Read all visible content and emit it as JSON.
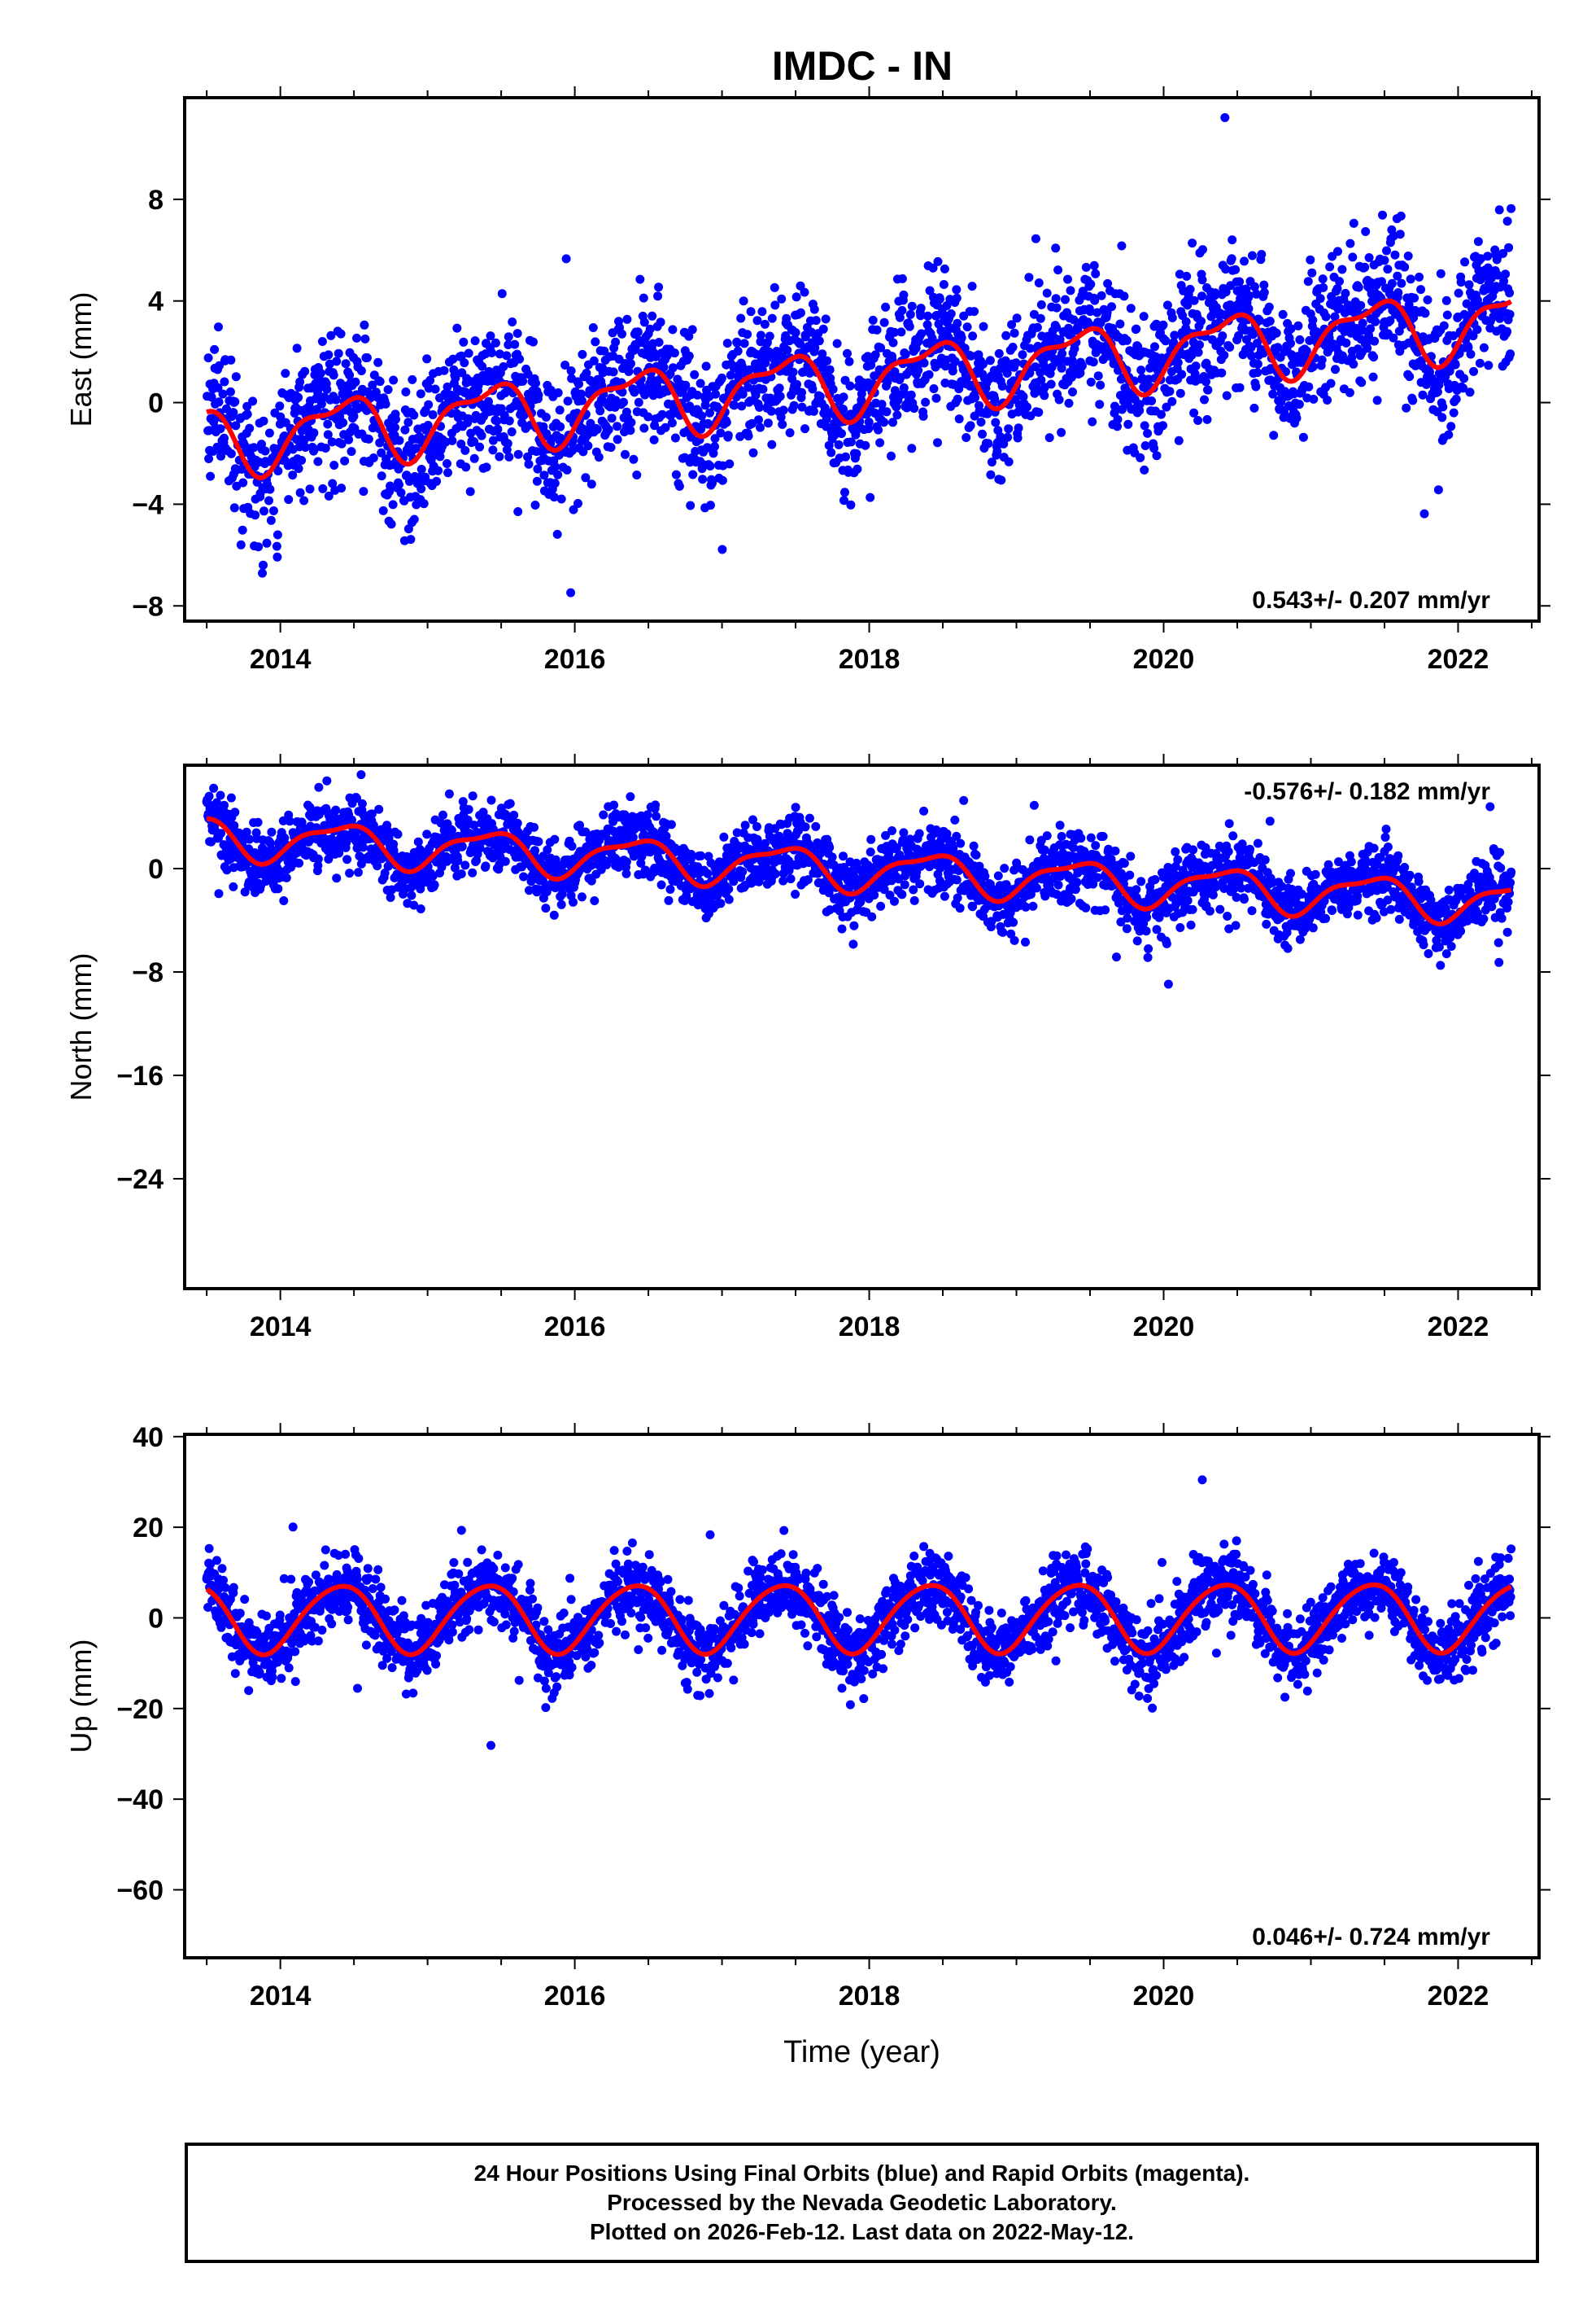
{
  "title": "IMDC - IN",
  "chart_data": [
    {
      "type": "scatter",
      "component": "East",
      "ylabel": "East (mm)",
      "xlim": [
        2013.35,
        2022.55
      ],
      "ylim": [
        -8.6,
        12.0
      ],
      "yticks": [
        -8,
        -4,
        0,
        4,
        8
      ],
      "ytick_labels": [
        "−8",
        "−4",
        "0",
        "4",
        "8"
      ],
      "xticks": [
        2014,
        2016,
        2018,
        2020,
        2022
      ],
      "xtick_labels": [
        "2014",
        "2016",
        "2018",
        "2020",
        "2022"
      ],
      "rate_label": "0.543+/- 0.207 mm/yr",
      "rate_position": "bottom-right",
      "model": {
        "t0": 2013.5,
        "offset": -1.5,
        "slope": 0.543,
        "annual_amp": 1.2,
        "semiannual_amp": 0.5
      },
      "scatter_sd": 1.4,
      "series": [
        {
          "name": "Final Orbits",
          "color": "#0000ff"
        },
        {
          "name": "Model fit",
          "color": "#ff0000"
        }
      ],
      "start": 2013.5,
      "end": 2022.36
    },
    {
      "type": "scatter",
      "component": "North",
      "ylabel": "North (mm)",
      "xlim": [
        2013.35,
        2022.55
      ],
      "ylim": [
        -32.5,
        8.0
      ],
      "yticks": [
        -24,
        -16,
        -8,
        0
      ],
      "ytick_labels": [
        "−24",
        "−16",
        "−8",
        "0"
      ],
      "xticks": [
        2014,
        2016,
        2018,
        2020,
        2022
      ],
      "xtick_labels": [
        "2014",
        "2016",
        "2018",
        "2020",
        "2022"
      ],
      "rate_label": "-0.576+/- 0.182 mm/yr",
      "rate_position": "top-right",
      "model": {
        "t0": 2013.5,
        "offset": 2.5,
        "slope": -0.576,
        "annual_amp": 1.5,
        "semiannual_amp": 0.5
      },
      "scatter_sd": 1.3,
      "series": [
        {
          "name": "Final Orbits",
          "color": "#0000ff"
        },
        {
          "name": "Model fit",
          "color": "#ff0000"
        }
      ],
      "start": 2013.5,
      "end": 2022.36
    },
    {
      "type": "scatter",
      "component": "Up",
      "ylabel": "Up (mm)",
      "xlabel": "Time (year)",
      "xlim": [
        2013.35,
        2022.55
      ],
      "ylim": [
        -75.0,
        40.5
      ],
      "yticks": [
        -60,
        -40,
        -20,
        0,
        20,
        40
      ],
      "ytick_labels": [
        "−60",
        "−40",
        "−20",
        "0",
        "20",
        "40"
      ],
      "xticks": [
        2014,
        2016,
        2018,
        2020,
        2022
      ],
      "xtick_labels": [
        "2014",
        "2016",
        "2018",
        "2020",
        "2022"
      ],
      "rate_label": "0.046+/- 0.724 mm/yr",
      "rate_position": "bottom-right",
      "model": {
        "t0": 2013.5,
        "offset": 0.0,
        "slope": 0.046,
        "annual_amp": 7.5,
        "semiannual_amp": 0.8
      },
      "scatter_sd": 4.0,
      "series": [
        {
          "name": "Final Orbits",
          "color": "#0000ff"
        },
        {
          "name": "Model fit",
          "color": "#ff0000"
        }
      ],
      "start": 2013.5,
      "end": 2022.36
    }
  ],
  "caption": {
    "line1": "24 Hour Positions Using Final Orbits (blue) and Rapid Orbits (magenta).",
    "line2": "Processed by the Nevada Geodetic Laboratory.",
    "line3": "Plotted on 2026-Feb-12. Last data on 2022-May-12."
  },
  "colors": {
    "points": "#0000ff",
    "model": "#ff0000",
    "axis": "#000000"
  }
}
